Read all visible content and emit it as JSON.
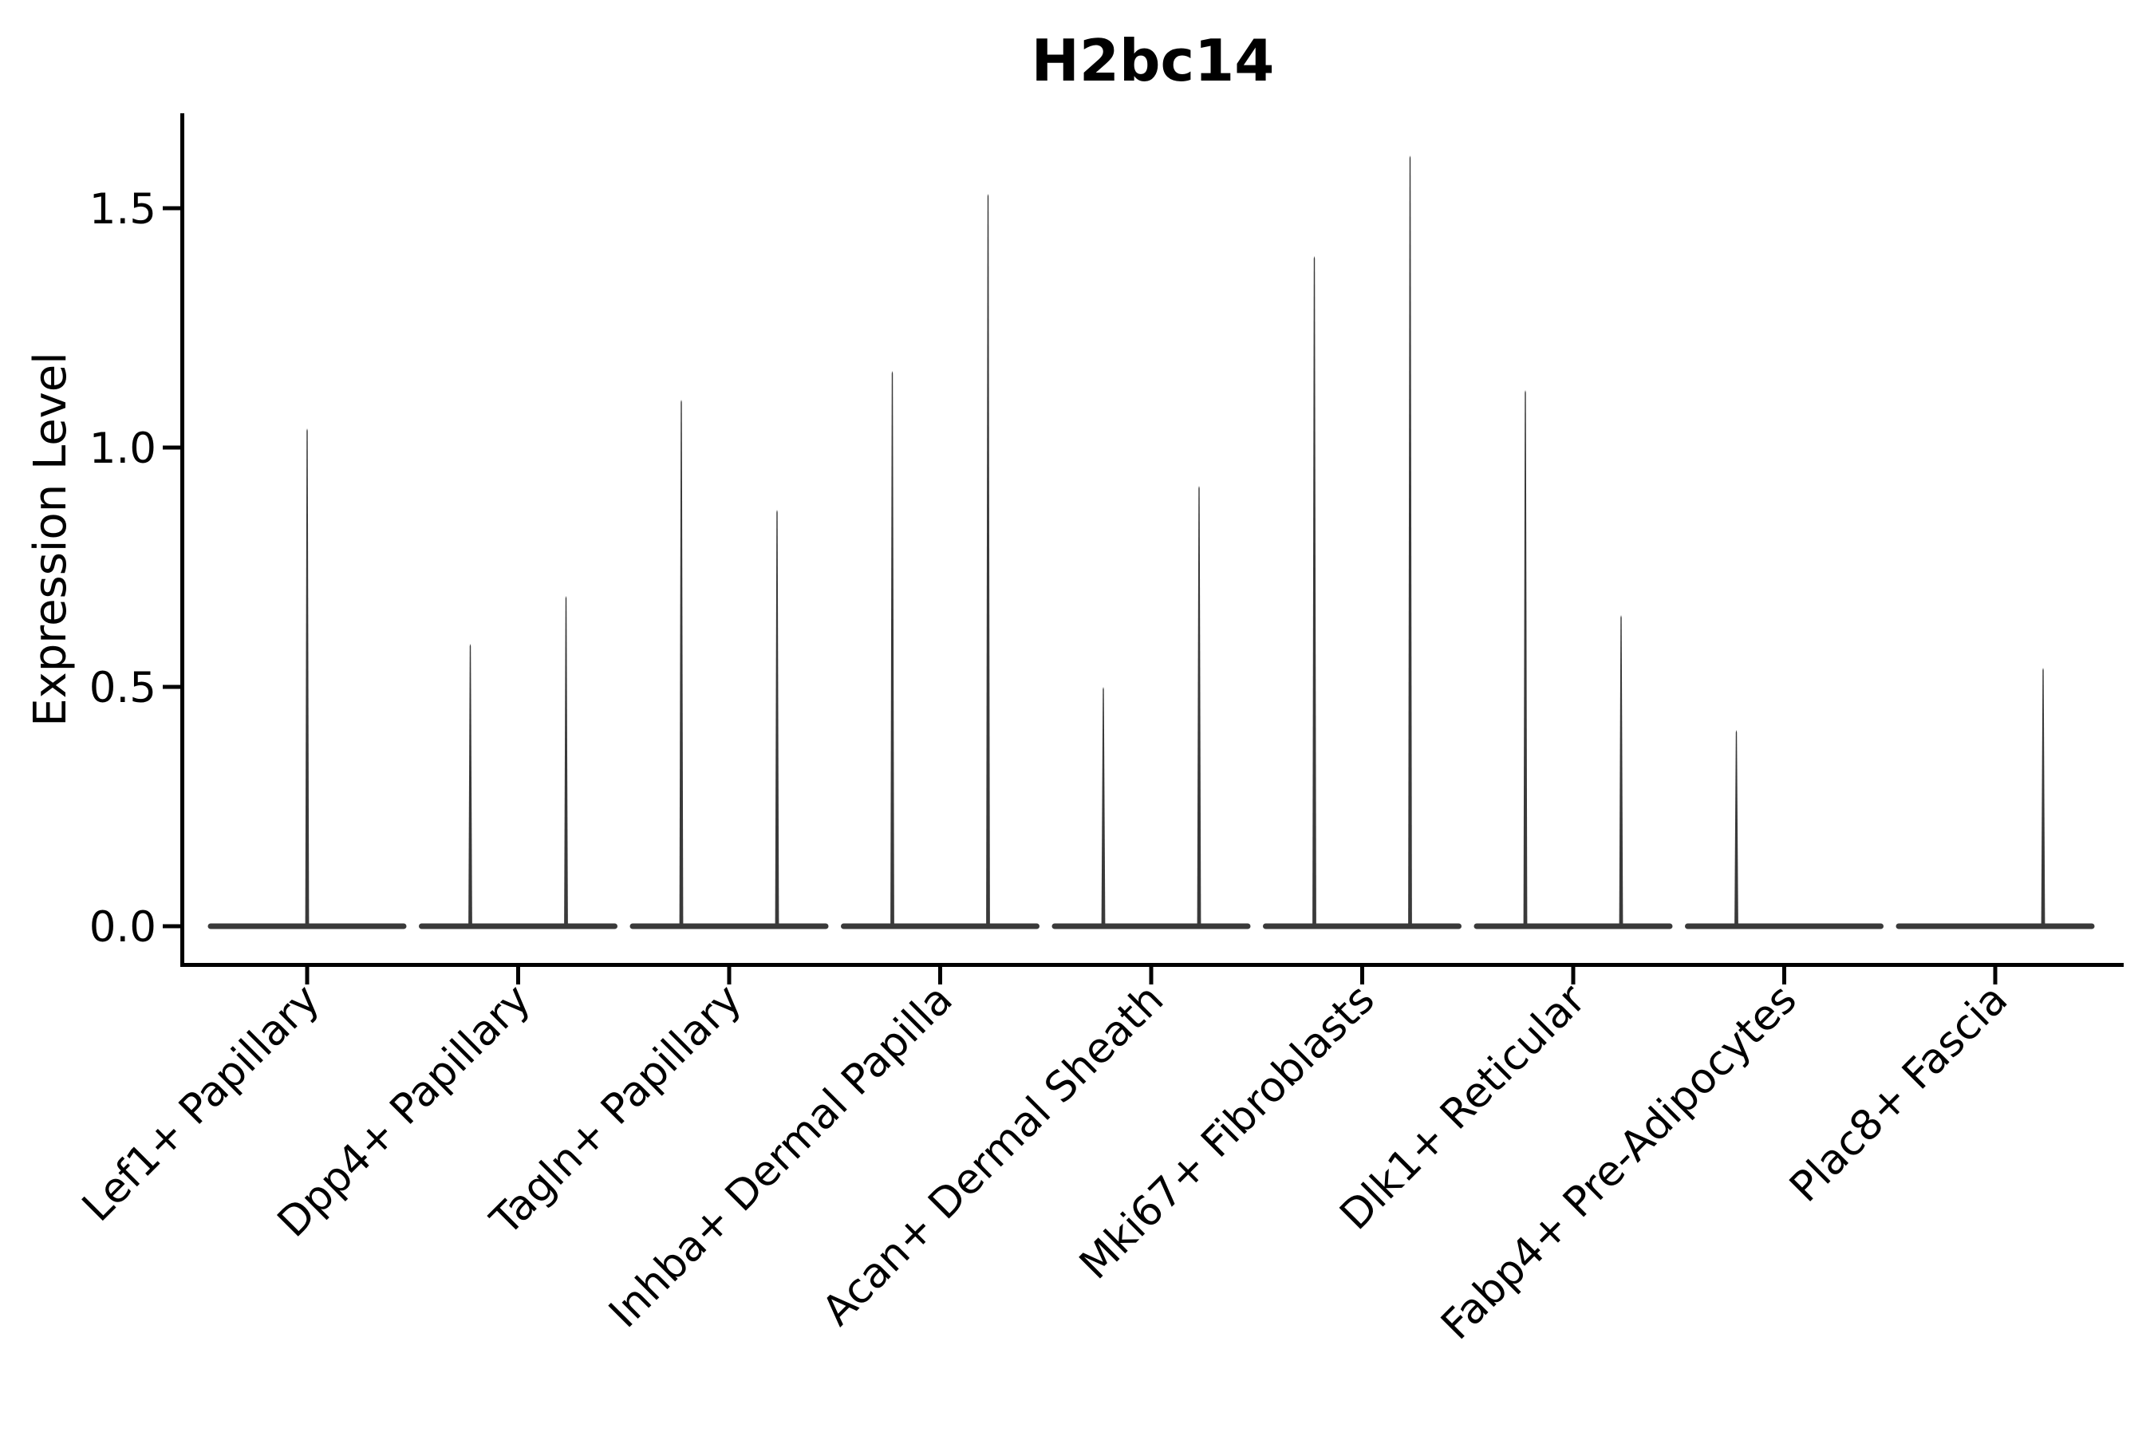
{
  "title": "H2bc14",
  "y_axis": {
    "label": "Expression Level",
    "tick_labels": [
      "0.0",
      "0.5",
      "1.0",
      "1.5"
    ],
    "tick_values": [
      0.0,
      0.5,
      1.0,
      1.5
    ]
  },
  "colors": {
    "background": "#ffffff",
    "axis": "#000000",
    "violin": "#3a3a3a",
    "text": "#000000"
  },
  "chart_data": {
    "type": "violin",
    "title": "H2bc14",
    "xlabel": "",
    "ylabel": "Expression Level",
    "ylim": [
      0,
      1.69
    ],
    "yticks": [
      0.0,
      0.5,
      1.0,
      1.5
    ],
    "grid": false,
    "legend": "none",
    "description": "Sparse expression violins: each violin collapses to a flat baseline at 0 with a thin density spike rising to the max expression value. Most categories contain two dodged violins (left/right); Lef1+ Papillary has a single centered violin; Fabp4+ Pre-Adipocytes has only a left spike; Plac8+ Fascia has only a right spike.",
    "categories": [
      "Lef1+ Papillary",
      "Dpp4+ Papillary",
      "Tagln+ Papillary",
      "Inhba+ Dermal Papilla",
      "Acan+ Dermal Sheath",
      "Mki67+ Fibroblasts",
      "Dlk1+ Reticular",
      "Fabp4+ Pre-Adipocytes",
      "Plac8+ Fascia"
    ],
    "violins": [
      {
        "category": "Lef1+ Papillary",
        "baseline_value": 0.0,
        "spikes": [
          {
            "pos": "center",
            "max": 1.04
          }
        ]
      },
      {
        "category": "Dpp4+ Papillary",
        "baseline_value": 0.0,
        "spikes": [
          {
            "pos": "left",
            "max": 0.59
          },
          {
            "pos": "right",
            "max": 0.69
          }
        ]
      },
      {
        "category": "Tagln+ Papillary",
        "baseline_value": 0.0,
        "spikes": [
          {
            "pos": "left",
            "max": 1.1
          },
          {
            "pos": "right",
            "max": 0.87
          }
        ]
      },
      {
        "category": "Inhba+ Dermal Papilla",
        "baseline_value": 0.0,
        "spikes": [
          {
            "pos": "left",
            "max": 1.16
          },
          {
            "pos": "right",
            "max": 1.53
          }
        ]
      },
      {
        "category": "Acan+ Dermal Sheath",
        "baseline_value": 0.0,
        "spikes": [
          {
            "pos": "left",
            "max": 0.5
          },
          {
            "pos": "right",
            "max": 0.92
          }
        ]
      },
      {
        "category": "Mki67+ Fibroblasts",
        "baseline_value": 0.0,
        "spikes": [
          {
            "pos": "left",
            "max": 1.4
          },
          {
            "pos": "right",
            "max": 1.61
          }
        ]
      },
      {
        "category": "Dlk1+ Reticular",
        "baseline_value": 0.0,
        "spikes": [
          {
            "pos": "left",
            "max": 1.12
          },
          {
            "pos": "right",
            "max": 0.65
          }
        ]
      },
      {
        "category": "Fabp4+ Pre-Adipocytes",
        "baseline_value": 0.0,
        "spikes": [
          {
            "pos": "left",
            "max": 0.41
          }
        ]
      },
      {
        "category": "Plac8+ Fascia",
        "baseline_value": 0.0,
        "spikes": [
          {
            "pos": "right",
            "max": 0.54
          }
        ]
      }
    ]
  }
}
